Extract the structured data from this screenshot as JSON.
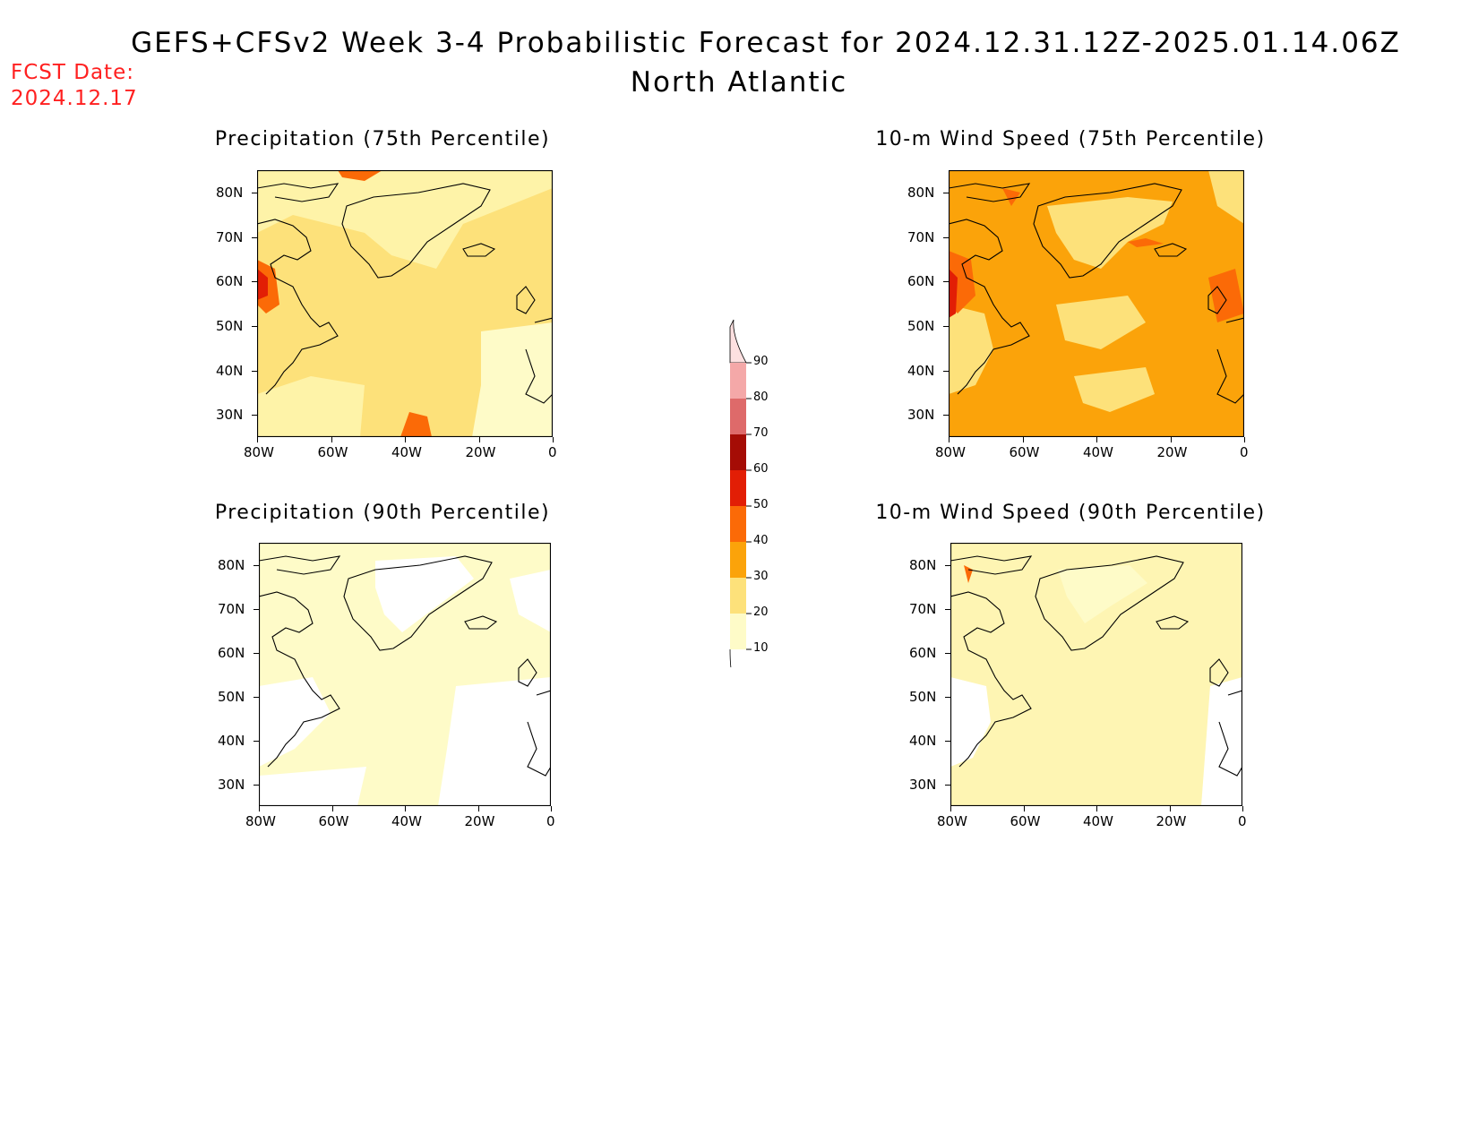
{
  "header": {
    "title": "GEFS+CFSv2 Week 3-4 Probabilistic Forecast for 2024.12.31.12Z-2025.01.14.06Z",
    "region": "North Atlantic",
    "fcst_label": "FCST Date:",
    "fcst_date": "2024.12.17"
  },
  "panels": [
    {
      "id": "precip75",
      "title": "Precipitation (75th Percentile)",
      "base_fill": "#fde17a"
    },
    {
      "id": "wind75",
      "title": "10-m Wind Speed (75th Percentile)",
      "base_fill": "#fba30a"
    },
    {
      "id": "precip90",
      "title": "Precipitation (90th Percentile)",
      "base_fill": "#fefbc8"
    },
    {
      "id": "wind90",
      "title": "10-m Wind Speed (90th Percentile)",
      "base_fill": "#fef5b3"
    }
  ],
  "axes": {
    "lat_ticks": [
      "80N",
      "70N",
      "60N",
      "50N",
      "40N",
      "30N"
    ],
    "lon_ticks": [
      "80W",
      "60W",
      "40W",
      "20W",
      "0"
    ]
  },
  "colorbar": {
    "levels": [
      "10",
      "20",
      "30",
      "40",
      "50",
      "60",
      "70",
      "80",
      "90"
    ],
    "colors": [
      "#fefbc8",
      "#fde17a",
      "#fba30a",
      "#fb6a07",
      "#e21e05",
      "#a50c05",
      "#de6a6a",
      "#f4a8a8",
      "#fde0e0"
    ]
  }
}
